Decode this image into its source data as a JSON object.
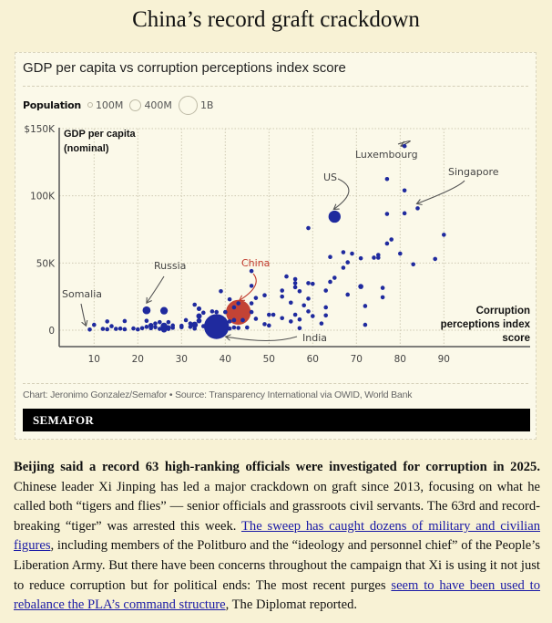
{
  "page": {
    "headline": "China’s record graft crackdown"
  },
  "chart_card": {
    "title": "GDP per capita vs corruption perceptions index score",
    "legend": {
      "title": "Population",
      "items": [
        {
          "label": "100M",
          "population_millions": 100
        },
        {
          "label": "400M",
          "population_millions": 400
        },
        {
          "label": "1B",
          "population_millions": 1000
        }
      ]
    },
    "credit": "Chart: Jeronimo Gonzalez/Semafor • Source: Transparency International via OWID, World Bank",
    "brand": "SEMAFOR"
  },
  "chart_data": {
    "type": "scatter",
    "title": "GDP per capita vs corruption perceptions index score",
    "xlabel": "Corruption perceptions index score",
    "ylabel": "GDP per capita (nominal)",
    "xlim": [
      1,
      98
    ],
    "ylim": [
      -13000,
      150000
    ],
    "xticks": [
      10,
      20,
      30,
      40,
      50,
      60,
      70,
      80,
      90
    ],
    "xtick_labels": [
      "10",
      "20",
      "30",
      "40",
      "50",
      "60",
      "70",
      "80",
      "90"
    ],
    "yticks": [
      0,
      50000,
      100000,
      150000
    ],
    "ytick_labels": [
      "0",
      "50K",
      "100K",
      "$150K"
    ],
    "grid": true,
    "colors": {
      "default": "#1f2a9e",
      "highlight": "#c0392b",
      "highlight_label": "#c0392b"
    },
    "annotations": [
      {
        "label": "Somalia",
        "x": 9,
        "y": 500
      },
      {
        "label": "Russia",
        "x": 22,
        "y": 14800
      },
      {
        "label": "China",
        "x": 43,
        "y": 13300,
        "highlight": true
      },
      {
        "label": "India",
        "x": 38,
        "y": 2700
      },
      {
        "label": "US",
        "x": 65,
        "y": 84500
      },
      {
        "label": "Luxembourg",
        "x": 81,
        "y": 137000
      },
      {
        "label": "Singapore",
        "x": 84,
        "y": 90700
      }
    ],
    "points": [
      {
        "name": "Somalia",
        "x": 9,
        "y": 500,
        "pop": 18
      },
      {
        "x": 10,
        "y": 4000,
        "pop": 25
      },
      {
        "x": 12,
        "y": 1000,
        "pop": 20
      },
      {
        "x": 13,
        "y": 700,
        "pop": 15
      },
      {
        "x": 13,
        "y": 6500,
        "pop": 10
      },
      {
        "x": 14,
        "y": 3000,
        "pop": 8
      },
      {
        "x": 15,
        "y": 1000,
        "pop": 12
      },
      {
        "x": 16,
        "y": 1200,
        "pop": 20
      },
      {
        "x": 17,
        "y": 700,
        "pop": 25
      },
      {
        "x": 17,
        "y": 6800,
        "pop": 8
      },
      {
        "x": 19,
        "y": 1300,
        "pop": 15
      },
      {
        "x": 20,
        "y": 600,
        "pop": 30
      },
      {
        "x": 21,
        "y": 1500,
        "pop": 25
      },
      {
        "x": 22,
        "y": 2500,
        "pop": 12
      },
      {
        "name": "Russia",
        "x": 22,
        "y": 14800,
        "pop": 144
      },
      {
        "x": 22,
        "y": 7000,
        "pop": 10
      },
      {
        "x": 23,
        "y": 3500,
        "pop": 60
      },
      {
        "x": 23,
        "y": 1500,
        "pop": 40
      },
      {
        "x": 24,
        "y": 5000,
        "pop": 20
      },
      {
        "x": 24,
        "y": 2200,
        "pop": 35
      },
      {
        "x": 25,
        "y": 6000,
        "pop": 15
      },
      {
        "x": 25,
        "y": 1000,
        "pop": 30
      },
      {
        "x": 26,
        "y": 14500,
        "pop": 130
      },
      {
        "x": 26,
        "y": 3000,
        "pop": 110
      },
      {
        "x": 26,
        "y": 500,
        "pop": 80
      },
      {
        "x": 27,
        "y": 2000,
        "pop": 50
      },
      {
        "x": 27,
        "y": 6000,
        "pop": 10
      },
      {
        "x": 27,
        "y": 900,
        "pop": 40
      },
      {
        "x": 28,
        "y": 1800,
        "pop": 25
      },
      {
        "x": 28,
        "y": 3500,
        "pop": 30
      },
      {
        "x": 30,
        "y": 3300,
        "pop": 30
      },
      {
        "x": 30,
        "y": 2200,
        "pop": 15
      },
      {
        "x": 31,
        "y": 7500,
        "pop": 40
      },
      {
        "x": 32,
        "y": 2500,
        "pop": 20
      },
      {
        "x": 32,
        "y": 5000,
        "pop": 35
      },
      {
        "x": 33,
        "y": 4000,
        "pop": 90
      },
      {
        "x": 33,
        "y": 19000,
        "pop": 12
      },
      {
        "x": 33,
        "y": 1200,
        "pop": 25
      },
      {
        "x": 34,
        "y": 16000,
        "pop": 50
      },
      {
        "x": 34,
        "y": 10500,
        "pop": 70
      },
      {
        "x": 34,
        "y": 7000,
        "pop": 60
      },
      {
        "x": 35,
        "y": 13000,
        "pop": 15
      },
      {
        "x": 35,
        "y": 3000,
        "pop": 30
      },
      {
        "x": 36,
        "y": 6000,
        "pop": 25
      },
      {
        "x": 37,
        "y": 14000,
        "pop": 30
      },
      {
        "name": "India",
        "x": 38,
        "y": 2700,
        "pop": 1420
      },
      {
        "x": 38,
        "y": 13500,
        "pop": 15
      },
      {
        "x": 39,
        "y": 29000,
        "pop": 10
      },
      {
        "x": 40,
        "y": 13500,
        "pop": 18
      },
      {
        "x": 40,
        "y": 1500,
        "pop": 30
      },
      {
        "x": 41,
        "y": 23000,
        "pop": 12
      },
      {
        "x": 41,
        "y": 6500,
        "pop": 25
      },
      {
        "x": 41,
        "y": 1200,
        "pop": 20
      },
      {
        "x": 42,
        "y": 2000,
        "pop": 15
      },
      {
        "x": 42,
        "y": 7500,
        "pop": 18
      },
      {
        "name": "China",
        "x": 43,
        "y": 13300,
        "pop": 1410
      },
      {
        "x": 43,
        "y": 1700,
        "pop": 12
      },
      {
        "x": 44,
        "y": 7500,
        "pop": 15
      },
      {
        "x": 45,
        "y": 2000,
        "pop": 40
      },
      {
        "x": 46,
        "y": 44000,
        "pop": 8
      },
      {
        "x": 46,
        "y": 33000,
        "pop": 8
      },
      {
        "x": 46,
        "y": 13500,
        "pop": 8
      },
      {
        "x": 46,
        "y": 20000,
        "pop": 10
      },
      {
        "x": 47,
        "y": 24000,
        "pop": 12
      },
      {
        "x": 47,
        "y": 8500,
        "pop": 10
      },
      {
        "x": 49,
        "y": 26000,
        "pop": 15
      },
      {
        "x": 49,
        "y": 4500,
        "pop": 12
      },
      {
        "x": 50,
        "y": 11500,
        "pop": 30
      },
      {
        "x": 50,
        "y": 3500,
        "pop": 10
      },
      {
        "x": 51,
        "y": 11500,
        "pop": 12
      },
      {
        "x": 53,
        "y": 29500,
        "pop": 10
      },
      {
        "x": 53,
        "y": 25000,
        "pop": 25
      },
      {
        "x": 53,
        "y": 9000,
        "pop": 10
      },
      {
        "x": 54,
        "y": 40000,
        "pop": 35
      },
      {
        "x": 55,
        "y": 20500,
        "pop": 10
      },
      {
        "x": 55,
        "y": 6500,
        "pop": 10
      },
      {
        "x": 56,
        "y": 38000,
        "pop": 8
      },
      {
        "x": 56,
        "y": 35000,
        "pop": 30
      },
      {
        "x": 56,
        "y": 32000,
        "pop": 10
      },
      {
        "x": 56,
        "y": 11500,
        "pop": 10
      },
      {
        "x": 57,
        "y": 29000,
        "pop": 12
      },
      {
        "x": 57,
        "y": 8000,
        "pop": 10
      },
      {
        "x": 57,
        "y": 1500,
        "pop": 10
      },
      {
        "x": 58,
        "y": 18500,
        "pop": 12
      },
      {
        "x": 59,
        "y": 76000,
        "pop": 8
      },
      {
        "x": 59,
        "y": 35000,
        "pop": 25
      },
      {
        "x": 59,
        "y": 23500,
        "pop": 10
      },
      {
        "x": 59,
        "y": 14000,
        "pop": 10
      },
      {
        "x": 60,
        "y": 34500,
        "pop": 10
      },
      {
        "x": 60,
        "y": 10500,
        "pop": 10
      },
      {
        "x": 62,
        "y": 5000,
        "pop": 10
      },
      {
        "x": 63,
        "y": 29500,
        "pop": 8
      },
      {
        "x": 63,
        "y": 17000,
        "pop": 15
      },
      {
        "x": 63,
        "y": 11000,
        "pop": 10
      },
      {
        "x": 64,
        "y": 54500,
        "pop": 8
      },
      {
        "x": 64,
        "y": 36000,
        "pop": 25
      },
      {
        "name": "US",
        "x": 65,
        "y": 84500,
        "pop": 335
      },
      {
        "x": 65,
        "y": 39000,
        "pop": 12
      },
      {
        "x": 67,
        "y": 58000,
        "pop": 8
      },
      {
        "x": 67,
        "y": 46500,
        "pop": 30
      },
      {
        "x": 68,
        "y": 50500,
        "pop": 12
      },
      {
        "x": 68,
        "y": 26500,
        "pop": 10
      },
      {
        "x": 69,
        "y": 57000,
        "pop": 12
      },
      {
        "x": 71,
        "y": 53500,
        "pop": 35
      },
      {
        "x": 71,
        "y": 32500,
        "pop": 60
      },
      {
        "x": 72,
        "y": 18000,
        "pop": 10
      },
      {
        "x": 72,
        "y": 4000,
        "pop": 10
      },
      {
        "x": 74,
        "y": 54000,
        "pop": 12
      },
      {
        "x": 75,
        "y": 56000,
        "pop": 40
      },
      {
        "x": 75,
        "y": 54000,
        "pop": 35
      },
      {
        "x": 76,
        "y": 31500,
        "pop": 8
      },
      {
        "x": 76,
        "y": 24500,
        "pop": 10
      },
      {
        "x": 77,
        "y": 112500,
        "pop": 8
      },
      {
        "x": 77,
        "y": 86500,
        "pop": 8
      },
      {
        "x": 77,
        "y": 64500,
        "pop": 25
      },
      {
        "x": 78,
        "y": 67500,
        "pop": 12
      },
      {
        "x": 80,
        "y": 57000,
        "pop": 12
      },
      {
        "name": "Luxembourg",
        "x": 81,
        "y": 137000,
        "pop": 0.7
      },
      {
        "x": 81,
        "y": 104000,
        "pop": 8
      },
      {
        "x": 81,
        "y": 87000,
        "pop": 8
      },
      {
        "x": 83,
        "y": 49000,
        "pop": 10
      },
      {
        "name": "Singapore",
        "x": 84,
        "y": 90700,
        "pop": 6
      },
      {
        "x": 88,
        "y": 53000,
        "pop": 10
      },
      {
        "x": 90,
        "y": 71000,
        "pop": 6
      }
    ]
  },
  "article": {
    "lead_bold": "Beijing said a record 63 high-ranking officials were investigated for corruption in 2025.",
    "text_1": " Chinese leader Xi Jinping has led a major crackdown on graft since 2013, focusing on what he called both “tigers and flies” — senior officials and grassroots civil servants. The 63rd and record-breaking “tiger” was arrested this week. ",
    "link_1": "The sweep has caught dozens of military and civilian figures",
    "text_2": ", including members of the Politburo and the “ideology and personnel chief” of the People’s Liberation Army. But there have been concerns throughout the campaign that Xi is using it not just to reduce corruption but for political ends: The most recent purges ",
    "link_2": "seem to have been used to rebalance the PLA’s command structure",
    "text_3": ", The Diplomat reported."
  }
}
